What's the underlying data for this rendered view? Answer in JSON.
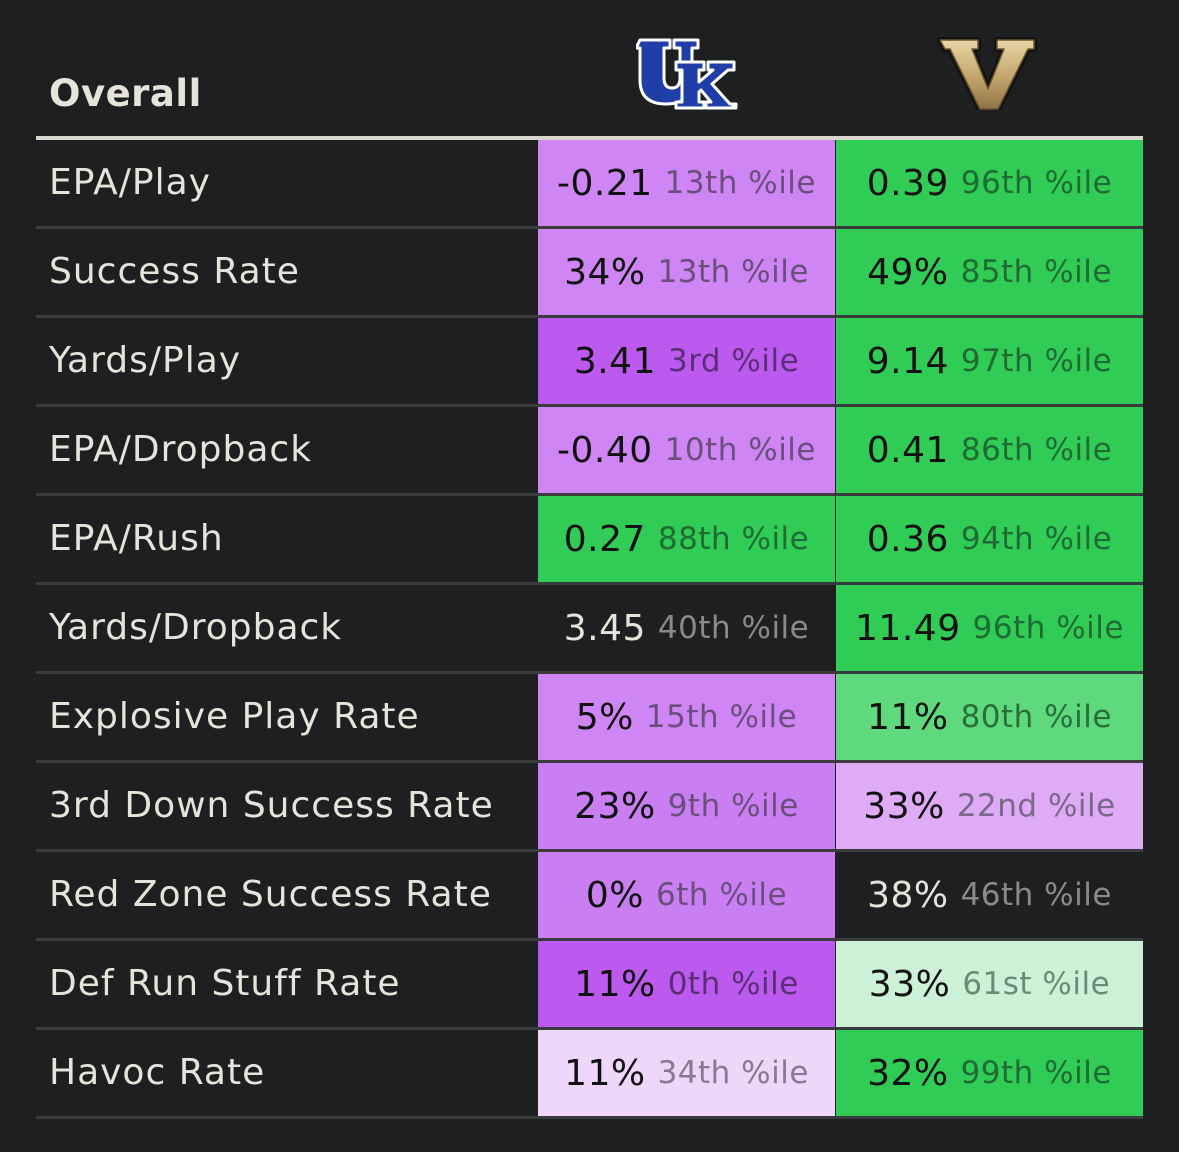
{
  "header": {
    "title": "Overall",
    "team1_logo_icon": "kentucky-uk-logo",
    "team2_logo_icon": "vanderbilt-v-logo"
  },
  "rows": [
    {
      "metric": "EPA/Play",
      "uk": {
        "value": "-0.21",
        "pct": "13th %ile",
        "bg": "#cf85f3",
        "valColor": "#111111",
        "pctColor": "#6a4f7e"
      },
      "v": {
        "value": "0.39",
        "pct": "96th %ile",
        "bg": "#31cc55",
        "valColor": "#111111",
        "pctColor": "#1e6b34"
      }
    },
    {
      "metric": "Success Rate",
      "uk": {
        "value": "34%",
        "pct": "13th %ile",
        "bg": "#cf85f3",
        "valColor": "#111111",
        "pctColor": "#6a4f7e"
      },
      "v": {
        "value": "49%",
        "pct": "85th %ile",
        "bg": "#31cc55",
        "valColor": "#111111",
        "pctColor": "#1e6b34"
      }
    },
    {
      "metric": "Yards/Play",
      "uk": {
        "value": "3.41",
        "pct": "3rd %ile",
        "bg": "#bc59ee",
        "valColor": "#111111",
        "pctColor": "#5a2f78"
      },
      "v": {
        "value": "9.14",
        "pct": "97th %ile",
        "bg": "#31cc55",
        "valColor": "#111111",
        "pctColor": "#1e6b34"
      }
    },
    {
      "metric": "EPA/Dropback",
      "uk": {
        "value": "-0.40",
        "pct": "10th %ile",
        "bg": "#cf85f3",
        "valColor": "#111111",
        "pctColor": "#6a4f7e"
      },
      "v": {
        "value": "0.41",
        "pct": "86th %ile",
        "bg": "#31cc55",
        "valColor": "#111111",
        "pctColor": "#1e6b34"
      }
    },
    {
      "metric": "EPA/Rush",
      "uk": {
        "value": "0.27",
        "pct": "88th %ile",
        "bg": "#31cc55",
        "valColor": "#111111",
        "pctColor": "#1e6b34"
      },
      "v": {
        "value": "0.36",
        "pct": "94th %ile",
        "bg": "#31cc55",
        "valColor": "#111111",
        "pctColor": "#1e6b34"
      }
    },
    {
      "metric": "Yards/Dropback",
      "uk": {
        "value": "3.45",
        "pct": "40th %ile",
        "bg": "#1e1f20",
        "valColor": "#e6e3da",
        "pctColor": "#8a8a8a"
      },
      "v": {
        "value": "11.49",
        "pct": "96th %ile",
        "bg": "#31cc55",
        "valColor": "#111111",
        "pctColor": "#1e6b34"
      }
    },
    {
      "metric": "Explosive Play Rate",
      "uk": {
        "value": "5%",
        "pct": "15th %ile",
        "bg": "#cf85f3",
        "valColor": "#111111",
        "pctColor": "#6a4f7e"
      },
      "v": {
        "value": "11%",
        "pct": "80th %ile",
        "bg": "#5fd97d",
        "valColor": "#111111",
        "pctColor": "#2a6e3c"
      }
    },
    {
      "metric": "3rd Down Success Rate",
      "uk": {
        "value": "23%",
        "pct": "9th %ile",
        "bg": "#c97ef2",
        "valColor": "#111111",
        "pctColor": "#6a4f7e"
      },
      "v": {
        "value": "33%",
        "pct": "22nd %ile",
        "bg": "#dfaaf6",
        "valColor": "#111111",
        "pctColor": "#7a6888"
      }
    },
    {
      "metric": "Red Zone Success Rate",
      "uk": {
        "value": "0%",
        "pct": "6th %ile",
        "bg": "#c97ef2",
        "valColor": "#111111",
        "pctColor": "#6a4f7e"
      },
      "v": {
        "value": "38%",
        "pct": "46th %ile",
        "bg": "#1e1f20",
        "valColor": "#e6e3da",
        "pctColor": "#8a8a8a"
      }
    },
    {
      "metric": "Def Run Stuff Rate",
      "uk": {
        "value": "11%",
        "pct": "0th %ile",
        "bg": "#bc59ee",
        "valColor": "#111111",
        "pctColor": "#5a2f78"
      },
      "v": {
        "value": "33%",
        "pct": "61st %ile",
        "bg": "#cdf1d6",
        "valColor": "#111111",
        "pctColor": "#6e8a76"
      }
    },
    {
      "metric": "Havoc Rate",
      "uk": {
        "value": "11%",
        "pct": "34th %ile",
        "bg": "#efd6fb",
        "valColor": "#111111",
        "pctColor": "#8a7896"
      },
      "v": {
        "value": "32%",
        "pct": "99th %ile",
        "bg": "#31cc55",
        "valColor": "#111111",
        "pctColor": "#1e6b34"
      }
    }
  ]
}
